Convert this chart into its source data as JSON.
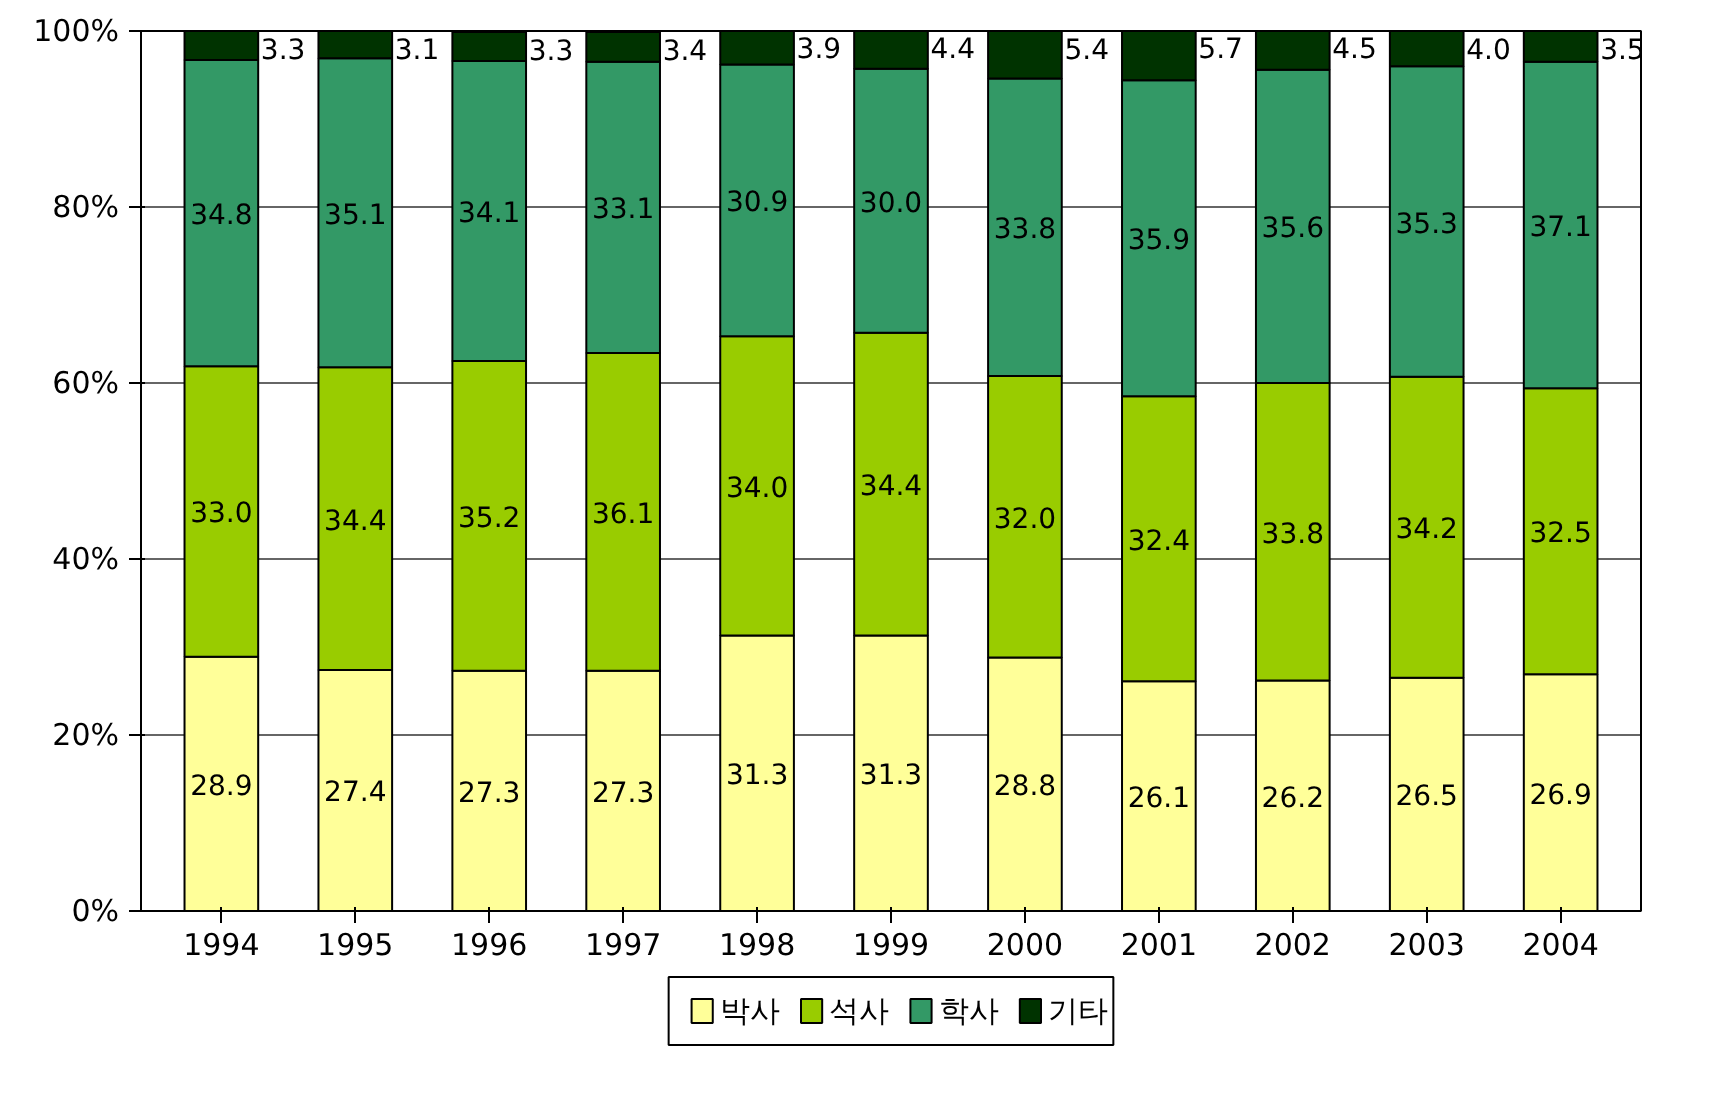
{
  "chart_data": {
    "type": "bar",
    "stacked": true,
    "categories": [
      "1994",
      "1995",
      "1996",
      "1997",
      "1998",
      "1999",
      "2000",
      "2001",
      "2002",
      "2003",
      "2004"
    ],
    "series": [
      {
        "name": "박사",
        "color": "#ffff99",
        "values": [
          28.9,
          27.4,
          27.3,
          27.3,
          31.3,
          31.3,
          28.8,
          26.1,
          26.2,
          26.5,
          26.9
        ],
        "value_labels": [
          "28.9",
          "27.4",
          "27.3",
          "27.3",
          "31.3",
          "31.3",
          "28.8",
          "26.1",
          "26.2",
          "26.5",
          "26.9"
        ]
      },
      {
        "name": "석사",
        "color": "#99cc00",
        "values": [
          33.0,
          34.4,
          35.2,
          36.1,
          34.0,
          34.4,
          32.0,
          32.4,
          33.8,
          34.2,
          32.5
        ],
        "value_labels": [
          "33.0",
          "34.4",
          "35.2",
          "36.1",
          "34.0",
          "34.4",
          "32.0",
          "32.4",
          "33.8",
          "34.2",
          "32.5"
        ]
      },
      {
        "name": "학사",
        "color": "#339966",
        "values": [
          34.8,
          35.1,
          34.1,
          33.1,
          30.9,
          30.0,
          33.8,
          35.9,
          35.6,
          35.3,
          37.1
        ],
        "value_labels": [
          "34.8",
          "35.1",
          "34.1",
          "33.1",
          "30.9",
          "30.0",
          "33.8",
          "35.9",
          "35.6",
          "35.3",
          "37.1"
        ]
      },
      {
        "name": "기타",
        "color": "#003300",
        "values": [
          3.3,
          3.1,
          3.3,
          3.4,
          3.9,
          4.4,
          5.4,
          5.7,
          4.5,
          4.0,
          3.5
        ],
        "value_labels": [
          "3.3",
          "3.1",
          "3.3",
          "3.4",
          "3.9",
          "4.4",
          "5.4",
          "5.7",
          "4.5",
          "4.0",
          "3.5"
        ]
      }
    ],
    "ylim": [
      0,
      100
    ],
    "yticks": [
      {
        "value": 0,
        "label": "0%"
      },
      {
        "value": 20,
        "label": "20%"
      },
      {
        "value": 40,
        "label": "40%"
      },
      {
        "value": 60,
        "label": "60%"
      },
      {
        "value": 80,
        "label": "80%"
      },
      {
        "value": 100,
        "label": "100%"
      }
    ],
    "grid": "y",
    "legend": "bottom"
  }
}
